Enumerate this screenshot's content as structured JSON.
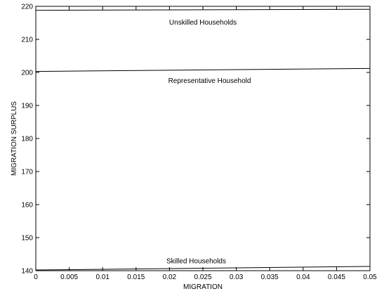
{
  "chart_data": {
    "type": "line",
    "title": "",
    "xlabel": "MIGRATION",
    "ylabel": "MIGRATION SURPLUS",
    "xlim": [
      0,
      0.05
    ],
    "ylim": [
      140,
      220
    ],
    "x_ticks": [
      0,
      0.005,
      0.01,
      0.015,
      0.02,
      0.025,
      0.03,
      0.035,
      0.04,
      0.045,
      0.05
    ],
    "x_tick_labels": [
      "0",
      "0.005",
      "0.01",
      "0.015",
      "0.02",
      "0.025",
      "0.03",
      "0.035",
      "0.04",
      "0.045",
      "0.05"
    ],
    "y_ticks": [
      140,
      150,
      160,
      170,
      180,
      190,
      200,
      210,
      220
    ],
    "y_tick_labels": [
      "140",
      "150",
      "160",
      "170",
      "180",
      "190",
      "200",
      "210",
      "220"
    ],
    "grid": false,
    "series": [
      {
        "name": "Unskilled Households",
        "x": [
          0,
          0.05
        ],
        "y": [
          218.8,
          219.1
        ],
        "label_at": [
          0.025,
          214.5
        ]
      },
      {
        "name": "Representative Household",
        "x": [
          0,
          0.05
        ],
        "y": [
          200.3,
          201.2
        ],
        "label_at": [
          0.026,
          196.8
        ]
      },
      {
        "name": "Skilled Households",
        "x": [
          0,
          0.05
        ],
        "y": [
          140.2,
          141.3
        ],
        "label_at": [
          0.024,
          142.2
        ]
      }
    ]
  }
}
